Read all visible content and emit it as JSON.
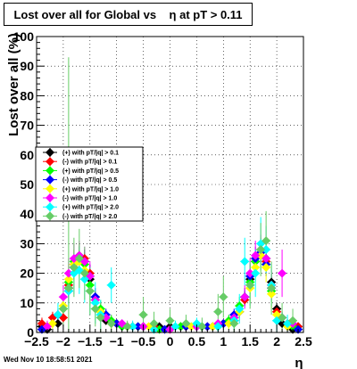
{
  "title": "Lost over all for Global vs    η at pT > 0.11",
  "timestamp": "Wed Nov 10 18:58:51 2021",
  "chart_data": {
    "type": "scatter",
    "title": "Lost over all for Global vs    η at pT > 0.11",
    "xlabel": "η",
    "ylabel": "Lost over all (%)",
    "xlim": [
      -2.5,
      2.5
    ],
    "ylim": [
      0,
      100
    ],
    "x_ticks": [
      "−2.5",
      "−2",
      "−1.5",
      "−1",
      "−0.5",
      "0",
      "0.5",
      "1",
      "1.5",
      "2",
      "2.5"
    ],
    "y_ticks": [
      "0",
      "10",
      "20",
      "30",
      "40",
      "50",
      "60",
      "70",
      "80",
      "90",
      "100"
    ],
    "grid": true,
    "legend_position": "center-left",
    "series": [
      {
        "name": "(+) with pT/|q| > 0.1",
        "color": "#000000",
        "x": [
          -2.4,
          -2.3,
          -2.1,
          -1.9,
          -1.8,
          -1.7,
          -1.6,
          -1.5,
          -1.4,
          -1.3,
          -1.2,
          -1.0,
          -0.8,
          -0.5,
          -0.2,
          0.0,
          0.2,
          0.5,
          0.8,
          1.0,
          1.2,
          1.3,
          1.4,
          1.5,
          1.6,
          1.7,
          1.8,
          1.9,
          2.0,
          2.1,
          2.3,
          2.4
        ],
        "y": [
          2,
          1,
          3,
          15,
          22,
          25,
          24,
          18,
          12,
          7,
          4,
          3,
          2,
          2,
          2,
          2,
          2,
          2,
          2,
          3,
          4,
          7,
          12,
          18,
          24,
          27,
          25,
          17,
          8,
          3,
          1,
          2
        ],
        "err": [
          1,
          1,
          2,
          3,
          3,
          3,
          3,
          3,
          2,
          2,
          1,
          1,
          1,
          1,
          1,
          1,
          1,
          1,
          1,
          1,
          1,
          2,
          2,
          3,
          3,
          3,
          3,
          3,
          2,
          1,
          1,
          1
        ]
      },
      {
        "name": "(-) with pT/|q| > 0.1",
        "color": "#ff0000",
        "x": [
          -2.4,
          -2.2,
          -2.0,
          -1.9,
          -1.8,
          -1.7,
          -1.6,
          -1.5,
          -1.4,
          -1.2,
          -1.0,
          -0.7,
          -0.3,
          0.0,
          0.3,
          0.7,
          1.0,
          1.2,
          1.4,
          1.5,
          1.6,
          1.7,
          1.8,
          1.9,
          2.0,
          2.2,
          2.4
        ],
        "y": [
          3,
          5,
          5,
          16,
          23,
          26,
          25,
          20,
          11,
          5,
          3,
          2,
          2,
          1,
          2,
          2,
          3,
          5,
          11,
          19,
          25,
          27,
          24,
          16,
          7,
          3,
          2
        ],
        "err": [
          2,
          2,
          2,
          3,
          3,
          3,
          3,
          3,
          2,
          1,
          1,
          1,
          1,
          1,
          1,
          1,
          1,
          1,
          2,
          3,
          3,
          3,
          3,
          3,
          2,
          1,
          1
        ]
      },
      {
        "name": "(+) with pT/|q| > 0.5",
        "color": "#00ff00",
        "x": [
          -2.3,
          -2.0,
          -1.9,
          -1.8,
          -1.7,
          -1.6,
          -1.5,
          -1.3,
          -1.1,
          -0.9,
          -0.6,
          -0.2,
          0.2,
          0.6,
          0.9,
          1.1,
          1.3,
          1.5,
          1.6,
          1.7,
          1.8,
          1.9,
          2.1,
          2.3
        ],
        "y": [
          2,
          8,
          17,
          24,
          26,
          23,
          16,
          8,
          4,
          2,
          2,
          1,
          2,
          2,
          2,
          4,
          9,
          17,
          24,
          28,
          23,
          14,
          5,
          2
        ],
        "err": [
          1,
          3,
          4,
          4,
          4,
          4,
          4,
          3,
          2,
          1,
          1,
          1,
          1,
          1,
          1,
          2,
          3,
          4,
          4,
          4,
          4,
          4,
          2,
          1
        ]
      },
      {
        "name": "(-) with pT/|q| > 0.5",
        "color": "#0000ff",
        "x": [
          -2.4,
          -2.1,
          -1.9,
          -1.8,
          -1.7,
          -1.6,
          -1.5,
          -1.4,
          -1.2,
          -1.0,
          -0.6,
          -0.1,
          0.3,
          0.7,
          1.0,
          1.2,
          1.4,
          1.5,
          1.6,
          1.7,
          1.8,
          1.9,
          2.1,
          2.4
        ],
        "y": [
          1,
          6,
          14,
          22,
          25,
          24,
          19,
          12,
          6,
          3,
          2,
          1,
          2,
          2,
          3,
          6,
          12,
          19,
          25,
          27,
          23,
          15,
          5,
          1
        ],
        "err": [
          1,
          2,
          4,
          4,
          4,
          4,
          4,
          3,
          2,
          1,
          1,
          1,
          1,
          1,
          1,
          2,
          3,
          4,
          4,
          4,
          4,
          4,
          2,
          1
        ]
      },
      {
        "name": "(+) with pT/|q| > 1.0",
        "color": "#ffff00",
        "x": [
          -2.2,
          -2.0,
          -1.9,
          -1.8,
          -1.7,
          -1.6,
          -1.5,
          -1.3,
          -1.1,
          -0.8,
          -0.4,
          0.0,
          0.4,
          0.8,
          1.1,
          1.3,
          1.5,
          1.6,
          1.7,
          1.8,
          1.9,
          2.0,
          2.2
        ],
        "y": [
          3,
          9,
          18,
          23,
          24,
          21,
          14,
          7,
          3,
          2,
          2,
          1,
          2,
          2,
          3,
          7,
          15,
          22,
          26,
          22,
          13,
          6,
          2
        ],
        "err": [
          2,
          3,
          5,
          5,
          5,
          5,
          5,
          3,
          2,
          1,
          1,
          1,
          1,
          1,
          2,
          3,
          5,
          5,
          5,
          5,
          5,
          3,
          1
        ]
      },
      {
        "name": "(-) with pT/|q| > 1.0",
        "color": "#ff00ff",
        "x": [
          -2.3,
          -2.0,
          -1.9,
          -1.8,
          -1.7,
          -1.6,
          -1.5,
          -1.4,
          -1.2,
          -0.9,
          -0.5,
          0.0,
          0.5,
          0.9,
          1.2,
          1.4,
          1.5,
          1.6,
          1.7,
          1.8,
          1.9,
          2.1,
          2.3
        ],
        "y": [
          2,
          12,
          20,
          25,
          26,
          24,
          19,
          11,
          5,
          3,
          2,
          1,
          2,
          3,
          5,
          12,
          20,
          26,
          28,
          25,
          16,
          20,
          3
        ],
        "err": [
          2,
          4,
          5,
          5,
          5,
          5,
          5,
          4,
          2,
          1,
          1,
          1,
          1,
          1,
          2,
          4,
          5,
          5,
          5,
          5,
          5,
          8,
          2
        ]
      },
      {
        "name": "(+) with pT/|q| > 2.0",
        "color": "#00ffff",
        "x": [
          -2.1,
          -1.9,
          -1.8,
          -1.7,
          -1.6,
          -1.5,
          -1.4,
          -1.3,
          -1.1,
          -0.7,
          -0.3,
          0.1,
          0.5,
          0.9,
          1.2,
          1.3,
          1.4,
          1.5,
          1.6,
          1.7,
          1.8,
          1.9,
          2.0,
          2.2
        ],
        "y": [
          6,
          14,
          20,
          21,
          18,
          14,
          10,
          6,
          16,
          2,
          1,
          2,
          3,
          2,
          4,
          8,
          24,
          16,
          20,
          30,
          28,
          16,
          4,
          3
        ],
        "err": [
          4,
          6,
          7,
          8,
          8,
          8,
          7,
          5,
          6,
          2,
          2,
          2,
          2,
          2,
          3,
          5,
          8,
          7,
          8,
          9,
          8,
          7,
          4,
          3
        ]
      },
      {
        "name": "(-) with pT/|q| > 2.0",
        "color": "#66cc66",
        "x": [
          -2.0,
          -1.9,
          -1.8,
          -1.7,
          -1.6,
          -1.5,
          -1.4,
          -1.3,
          -1.1,
          -0.8,
          -0.5,
          -0.3,
          0.0,
          0.3,
          0.6,
          0.9,
          1.0,
          1.2,
          1.5,
          1.7,
          1.8,
          1.9,
          2.1,
          2.3
        ],
        "y": [
          8,
          15,
          22,
          25,
          20,
          14,
          8,
          5,
          3,
          2,
          6,
          3,
          4,
          3,
          2,
          7,
          12,
          3,
          16,
          28,
          31,
          15,
          5,
          4
        ],
        "err": [
          6,
          78,
          10,
          10,
          9,
          8,
          6,
          5,
          3,
          2,
          6,
          4,
          4,
          3,
          3,
          6,
          7,
          3,
          8,
          9,
          10,
          9,
          5,
          4
        ]
      }
    ]
  }
}
